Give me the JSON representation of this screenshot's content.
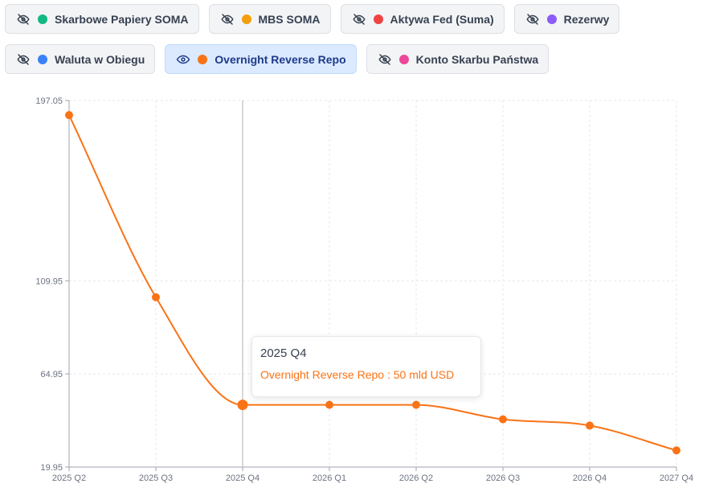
{
  "toggles": [
    [
      {
        "label": "Skarbowe Papiery SOMA",
        "color": "#10b981",
        "visible": false,
        "icon": "eye-off-icon"
      },
      {
        "label": "MBS SOMA",
        "color": "#f59e0b",
        "visible": false,
        "icon": "eye-off-icon"
      },
      {
        "label": "Aktywa Fed (Suma)",
        "color": "#ef4444",
        "visible": false,
        "icon": "eye-off-icon"
      },
      {
        "label": "Rezerwy",
        "color": "#8b5cf6",
        "visible": false,
        "icon": "eye-off-icon"
      }
    ],
    [
      {
        "label": "Waluta w Obiegu",
        "color": "#3b82f6",
        "visible": false,
        "icon": "eye-off-icon"
      },
      {
        "label": "Overnight Reverse Repo",
        "color": "#f97316",
        "visible": true,
        "icon": "eye-icon"
      },
      {
        "label": "Konto Skarbu Państwa",
        "color": "#ec4899",
        "visible": false,
        "icon": "eye-off-icon"
      }
    ]
  ],
  "tooltip": {
    "title": "2025 Q4",
    "value": "Overnight Reverse Repo : 50 mld USD"
  },
  "chart_data": {
    "type": "line",
    "categories": [
      "2025 Q2",
      "2025 Q3",
      "2025 Q4",
      "2026 Q1",
      "2026 Q2",
      "2026 Q3",
      "2026 Q4",
      "2027 Q4"
    ],
    "series": [
      {
        "name": "Overnight Reverse Repo",
        "color": "#f97316",
        "values": [
          190,
          102,
          50,
          50,
          50,
          43,
          40,
          28
        ]
      }
    ],
    "y_ticks": [
      "19.95",
      "64.95",
      "109.95",
      "197.05"
    ],
    "ylim": [
      19.95,
      197.05
    ],
    "unit": "mld USD",
    "highlight_category": "2025 Q4",
    "grid": true,
    "title": "",
    "xlabel": "",
    "ylabel": ""
  }
}
